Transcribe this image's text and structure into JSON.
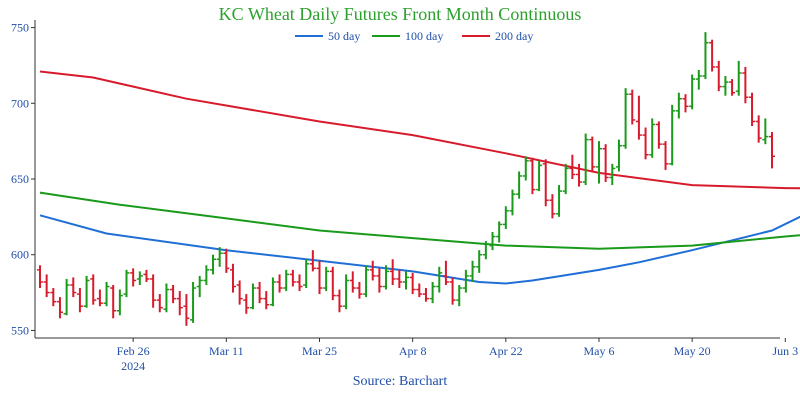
{
  "chart_data": {
    "type": "ohlc",
    "title": "KC Wheat Daily Futures Front Month Continuous",
    "source": "Source: Barchart",
    "ylim": [
      545,
      755
    ],
    "yticks": [
      550,
      600,
      650,
      700,
      750
    ],
    "x_tick_labels": [
      {
        "label": "Feb 26",
        "sub": "2024",
        "index": 14
      },
      {
        "label": "Mar 11",
        "index": 28
      },
      {
        "label": "Mar 25",
        "index": 42
      },
      {
        "label": "Apr 8",
        "index": 56
      },
      {
        "label": "Apr 22",
        "index": 70
      },
      {
        "label": "May 6",
        "index": 84
      },
      {
        "label": "May 20",
        "index": 98
      },
      {
        "label": "Jun 3",
        "index": 112
      }
    ],
    "grid": false,
    "legend_position": "top",
    "colors": {
      "up": "#1a9a1a",
      "down": "#d81b2c",
      "title": "#2ca02c",
      "source": "#1f4fa8",
      "axis_text": "#1f4fa8",
      "ma50": "#1f6fd6",
      "ma100": "#1a9a1a",
      "ma200": "#d81b2c"
    },
    "series": [
      {
        "name": "50 day",
        "color": "#1f6fd6",
        "points": [
          [
            0,
            626
          ],
          [
            10,
            614
          ],
          [
            28,
            603
          ],
          [
            42,
            596
          ],
          [
            56,
            589
          ],
          [
            66,
            582
          ],
          [
            70,
            581
          ],
          [
            74,
            583
          ],
          [
            84,
            590
          ],
          [
            90,
            595
          ],
          [
            98,
            603
          ],
          [
            110,
            616
          ],
          [
            118,
            633
          ],
          [
            124,
            640
          ],
          [
            128,
            643
          ]
        ]
      },
      {
        "name": "100 day",
        "color": "#1a9a1a",
        "points": [
          [
            0,
            641
          ],
          [
            12,
            633
          ],
          [
            28,
            624
          ],
          [
            42,
            616
          ],
          [
            56,
            611
          ],
          [
            70,
            606
          ],
          [
            84,
            604
          ],
          [
            98,
            606
          ],
          [
            112,
            612
          ],
          [
            128,
            618
          ]
        ]
      },
      {
        "name": "200 day",
        "color": "#d81b2c",
        "points": [
          [
            0,
            721
          ],
          [
            8,
            717
          ],
          [
            22,
            703
          ],
          [
            42,
            688
          ],
          [
            56,
            679
          ],
          [
            70,
            667
          ],
          [
            84,
            654
          ],
          [
            98,
            646
          ],
          [
            112,
            644
          ],
          [
            128,
            643
          ]
        ]
      }
    ],
    "bars": [
      {
        "d": "Feb 12",
        "o": 590,
        "h": 593,
        "l": 578,
        "c": 582
      },
      {
        "d": "Feb 13",
        "o": 582,
        "h": 587,
        "l": 572,
        "c": 575
      },
      {
        "d": "Feb 14",
        "o": 575,
        "h": 578,
        "l": 566,
        "c": 569
      },
      {
        "d": "Feb 15",
        "o": 569,
        "h": 572,
        "l": 558,
        "c": 562
      },
      {
        "d": "Feb 16",
        "o": 561,
        "h": 584,
        "l": 560,
        "c": 580
      },
      {
        "d": "Feb 20",
        "o": 580,
        "h": 585,
        "l": 572,
        "c": 575
      },
      {
        "d": "Feb 21",
        "o": 574,
        "h": 578,
        "l": 562,
        "c": 566
      },
      {
        "d": "Feb 22",
        "o": 566,
        "h": 586,
        "l": 565,
        "c": 583
      },
      {
        "d": "Feb 23",
        "o": 584,
        "h": 587,
        "l": 567,
        "c": 570
      },
      {
        "d": "Feb 26",
        "o": 571,
        "h": 577,
        "l": 566,
        "c": 568
      },
      {
        "d": "Feb 27",
        "o": 568,
        "h": 582,
        "l": 566,
        "c": 579
      },
      {
        "d": "Feb 28",
        "o": 578,
        "h": 580,
        "l": 558,
        "c": 563
      },
      {
        "d": "Feb 29",
        "o": 563,
        "h": 577,
        "l": 560,
        "c": 573
      },
      {
        "d": "Mar 1",
        "o": 574,
        "h": 590,
        "l": 572,
        "c": 588
      },
      {
        "d": "Mar 4",
        "o": 588,
        "h": 591,
        "l": 579,
        "c": 583
      },
      {
        "d": "Mar 5",
        "o": 584,
        "h": 589,
        "l": 580,
        "c": 586
      },
      {
        "d": "Mar 6",
        "o": 587,
        "h": 590,
        "l": 582,
        "c": 584
      },
      {
        "d": "Mar 7",
        "o": 584,
        "h": 587,
        "l": 565,
        "c": 570
      },
      {
        "d": "Mar 8",
        "o": 570,
        "h": 574,
        "l": 562,
        "c": 565
      },
      {
        "d": "Mar 11",
        "o": 564,
        "h": 581,
        "l": 562,
        "c": 577
      },
      {
        "d": "Mar 12",
        "o": 577,
        "h": 580,
        "l": 568,
        "c": 571
      },
      {
        "d": "Mar 13",
        "o": 571,
        "h": 576,
        "l": 560,
        "c": 565
      },
      {
        "d": "Mar 14",
        "o": 566,
        "h": 574,
        "l": 553,
        "c": 558
      },
      {
        "d": "Mar 15",
        "o": 557,
        "h": 582,
        "l": 555,
        "c": 578
      },
      {
        "d": "Mar 18",
        "o": 579,
        "h": 586,
        "l": 572,
        "c": 583
      },
      {
        "d": "Mar 19",
        "o": 583,
        "h": 593,
        "l": 580,
        "c": 590
      },
      {
        "d": "Mar 20",
        "o": 590,
        "h": 600,
        "l": 587,
        "c": 597
      },
      {
        "d": "Mar 21",
        "o": 597,
        "h": 605,
        "l": 592,
        "c": 601
      },
      {
        "d": "Mar 22",
        "o": 601,
        "h": 604,
        "l": 588,
        "c": 591
      },
      {
        "d": "Mar 25",
        "o": 590,
        "h": 594,
        "l": 575,
        "c": 579
      },
      {
        "d": "Mar 26",
        "o": 580,
        "h": 583,
        "l": 567,
        "c": 571
      },
      {
        "d": "Mar 27",
        "o": 570,
        "h": 574,
        "l": 561,
        "c": 565
      },
      {
        "d": "Mar 28",
        "o": 565,
        "h": 581,
        "l": 564,
        "c": 578
      },
      {
        "d": "Apr 1",
        "o": 578,
        "h": 582,
        "l": 568,
        "c": 571
      },
      {
        "d": "Apr 2",
        "o": 571,
        "h": 576,
        "l": 564,
        "c": 567
      },
      {
        "d": "Apr 3",
        "o": 567,
        "h": 585,
        "l": 566,
        "c": 582
      },
      {
        "d": "Apr 4",
        "o": 582,
        "h": 587,
        "l": 575,
        "c": 578
      },
      {
        "d": "Apr 5",
        "o": 578,
        "h": 590,
        "l": 576,
        "c": 587
      },
      {
        "d": "Apr 8",
        "o": 587,
        "h": 590,
        "l": 579,
        "c": 582
      },
      {
        "d": "Apr 9",
        "o": 582,
        "h": 587,
        "l": 576,
        "c": 579
      },
      {
        "d": "Apr 10",
        "o": 580,
        "h": 597,
        "l": 578,
        "c": 594
      },
      {
        "d": "Apr 11",
        "o": 594,
        "h": 603,
        "l": 589,
        "c": 591
      },
      {
        "d": "Apr 12",
        "o": 591,
        "h": 596,
        "l": 574,
        "c": 578
      },
      {
        "d": "Apr 15",
        "o": 578,
        "h": 592,
        "l": 576,
        "c": 589
      },
      {
        "d": "Apr 16",
        "o": 589,
        "h": 592,
        "l": 570,
        "c": 573
      },
      {
        "d": "Apr 17",
        "o": 573,
        "h": 577,
        "l": 562,
        "c": 566
      },
      {
        "d": "Apr 18",
        "o": 566,
        "h": 587,
        "l": 564,
        "c": 583
      },
      {
        "d": "Apr 19",
        "o": 583,
        "h": 589,
        "l": 575,
        "c": 578
      },
      {
        "d": "Apr 22",
        "o": 578,
        "h": 582,
        "l": 571,
        "c": 574
      },
      {
        "d": "Apr 23",
        "o": 574,
        "h": 593,
        "l": 572,
        "c": 590
      },
      {
        "d": "Apr 24",
        "o": 590,
        "h": 596,
        "l": 583,
        "c": 586
      },
      {
        "d": "Apr 25",
        "o": 586,
        "h": 591,
        "l": 575,
        "c": 579
      },
      {
        "d": "Apr 26",
        "o": 579,
        "h": 593,
        "l": 577,
        "c": 589
      },
      {
        "d": "Apr 29",
        "o": 589,
        "h": 597,
        "l": 580,
        "c": 584
      },
      {
        "d": "Apr 30",
        "o": 584,
        "h": 590,
        "l": 578,
        "c": 582
      },
      {
        "d": "May 1",
        "o": 582,
        "h": 589,
        "l": 577,
        "c": 585
      },
      {
        "d": "May 2",
        "o": 585,
        "h": 588,
        "l": 574,
        "c": 577
      },
      {
        "d": "May 3",
        "o": 577,
        "h": 581,
        "l": 572,
        "c": 574
      },
      {
        "d": "May 6",
        "o": 574,
        "h": 578,
        "l": 569,
        "c": 571
      },
      {
        "d": "May 7",
        "o": 571,
        "h": 582,
        "l": 568,
        "c": 579
      },
      {
        "d": "May 8",
        "o": 579,
        "h": 592,
        "l": 575,
        "c": 588
      },
      {
        "d": "May 9",
        "o": 586,
        "h": 596,
        "l": 580,
        "c": 582
      },
      {
        "d": "May 10",
        "o": 582,
        "h": 585,
        "l": 567,
        "c": 570
      },
      {
        "d": "May 13",
        "o": 570,
        "h": 580,
        "l": 566,
        "c": 578
      },
      {
        "d": "May 14",
        "o": 578,
        "h": 590,
        "l": 575,
        "c": 586
      },
      {
        "d": "May 15",
        "o": 586,
        "h": 596,
        "l": 582,
        "c": 592
      },
      {
        "d": "May 16",
        "o": 592,
        "h": 603,
        "l": 588,
        "c": 600
      },
      {
        "d": "May 17",
        "o": 600,
        "h": 609,
        "l": 597,
        "c": 607
      },
      {
        "d": "May 20",
        "o": 606,
        "h": 615,
        "l": 603,
        "c": 612
      },
      {
        "d": "May 21",
        "o": 612,
        "h": 622,
        "l": 608,
        "c": 620
      },
      {
        "d": "May 22",
        "o": 620,
        "h": 632,
        "l": 617,
        "c": 629
      },
      {
        "d": "May 23",
        "o": 629,
        "h": 643,
        "l": 626,
        "c": 640
      },
      {
        "d": "May 24",
        "o": 640,
        "h": 655,
        "l": 637,
        "c": 652
      },
      {
        "d": "May 28",
        "o": 652,
        "h": 665,
        "l": 649,
        "c": 662
      },
      {
        "d": "May 29",
        "o": 662,
        "h": 664,
        "l": 640,
        "c": 643
      },
      {
        "d": "May 30",
        "o": 643,
        "h": 662,
        "l": 642,
        "c": 659
      },
      {
        "d": "May 31",
        "o": 660,
        "h": 663,
        "l": 632,
        "c": 636
      },
      {
        "d": "Jun 3",
        "o": 636,
        "h": 640,
        "l": 624,
        "c": 627
      },
      {
        "d": "Jun 4",
        "o": 627,
        "h": 646,
        "l": 625,
        "c": 642
      },
      {
        "d": "Jun 5",
        "o": 642,
        "h": 660,
        "l": 640,
        "c": 657
      },
      {
        "d": "Jun 6",
        "o": 657,
        "h": 666,
        "l": 650,
        "c": 653
      },
      {
        "d": "Jun 7",
        "o": 653,
        "h": 660,
        "l": 645,
        "c": 648
      },
      {
        "d": "Jun 10",
        "o": 648,
        "h": 680,
        "l": 646,
        "c": 676
      },
      {
        "d": "Jun 11",
        "o": 676,
        "h": 678,
        "l": 655,
        "c": 658
      },
      {
        "d": "Jun 12",
        "o": 658,
        "h": 675,
        "l": 647,
        "c": 670
      },
      {
        "d": "Jun 13",
        "o": 670,
        "h": 673,
        "l": 648,
        "c": 651
      },
      {
        "d": "Jun 14",
        "o": 651,
        "h": 660,
        "l": 646,
        "c": 657
      },
      {
        "d": "Jun 17",
        "o": 658,
        "h": 676,
        "l": 655,
        "c": 672
      },
      {
        "d": "Jun 18",
        "o": 672,
        "h": 710,
        "l": 670,
        "c": 706
      },
      {
        "d": "Jun 19",
        "o": 706,
        "h": 709,
        "l": 686,
        "c": 689
      },
      {
        "d": "Jun 20",
        "o": 688,
        "h": 705,
        "l": 676,
        "c": 679
      },
      {
        "d": "Jun 21",
        "o": 679,
        "h": 684,
        "l": 663,
        "c": 666
      },
      {
        "d": "Jun 24",
        "o": 666,
        "h": 690,
        "l": 664,
        "c": 686
      },
      {
        "d": "Jun 25",
        "o": 686,
        "h": 688,
        "l": 670,
        "c": 673
      },
      {
        "d": "Jun 26",
        "o": 673,
        "h": 675,
        "l": 656,
        "c": 660
      },
      {
        "d": "Jun 27",
        "o": 660,
        "h": 699,
        "l": 659,
        "c": 695
      },
      {
        "d": "Jun 28",
        "o": 695,
        "h": 707,
        "l": 690,
        "c": 703
      },
      {
        "d": "Jul 1",
        "o": 703,
        "h": 706,
        "l": 694,
        "c": 698
      },
      {
        "d": "Jul 2",
        "o": 698,
        "h": 719,
        "l": 696,
        "c": 716
      },
      {
        "d": "Jul 3",
        "o": 716,
        "h": 722,
        "l": 709,
        "c": 718
      },
      {
        "d": "Jul 5",
        "o": 718,
        "h": 747,
        "l": 716,
        "c": 740
      },
      {
        "d": "Jul 8",
        "o": 740,
        "h": 742,
        "l": 721,
        "c": 724
      },
      {
        "d": "Jul 9",
        "o": 724,
        "h": 728,
        "l": 708,
        "c": 711
      },
      {
        "d": "Jul 10",
        "o": 711,
        "h": 718,
        "l": 705,
        "c": 714
      },
      {
        "d": "Jul 11",
        "o": 714,
        "h": 716,
        "l": 705,
        "c": 707
      },
      {
        "d": "Jul 12",
        "o": 708,
        "h": 728,
        "l": 705,
        "c": 720
      },
      {
        "d": "Jul 15",
        "o": 720,
        "h": 724,
        "l": 700,
        "c": 704
      },
      {
        "d": "Jul 16",
        "o": 704,
        "h": 707,
        "l": 685,
        "c": 688
      },
      {
        "d": "Jul 17",
        "o": 688,
        "h": 692,
        "l": 674,
        "c": 677
      },
      {
        "d": "Jul 18",
        "o": 676,
        "h": 690,
        "l": 673,
        "c": 678
      },
      {
        "d": "Jul 19",
        "o": 678,
        "h": 681,
        "l": 657,
        "c": 665
      }
    ]
  }
}
